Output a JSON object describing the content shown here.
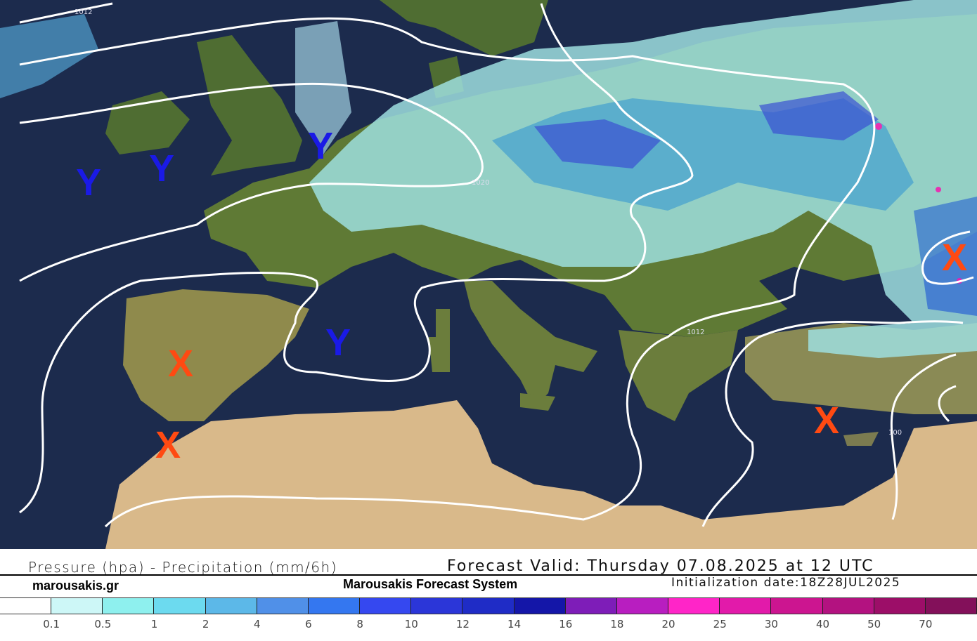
{
  "header": {
    "title_left": "Pressure (hpa) - Precipitation (mm/6h)",
    "forecast_valid": "Forecast Valid:  Thursday 07.08.2025 at 12 UTC",
    "site": "marousakis.gr",
    "system": "Marousakis Forecast System",
    "initialization": "Initialization date:18Z28JUL2025"
  },
  "legend": {
    "colors": [
      "#ffffff",
      "#cdf7f7",
      "#8ef0ee",
      "#6cdaef",
      "#5cb8e8",
      "#5090e8",
      "#3477f0",
      "#3548f0",
      "#2b36d8",
      "#1f2cc6",
      "#1416a8",
      "#7e1db8",
      "#b81ec0",
      "#ff25c8",
      "#e21aaa",
      "#cc1590",
      "#b31280",
      "#9c0e68",
      "#83105a"
    ],
    "labels": [
      "0.1",
      "0.5",
      "1",
      "2",
      "4",
      "6",
      "8",
      "10",
      "12",
      "14",
      "16",
      "18",
      "20",
      "25",
      "30",
      "40",
      "50",
      "70"
    ]
  },
  "map": {
    "isobar_labels": [
      "1012",
      "1020",
      "1012",
      "100"
    ],
    "high_marker": "Y",
    "low_marker": "X",
    "high_color": "#1a1ae6",
    "low_color": "#ff4a12",
    "sea_color": "#1c2b4d",
    "isobar_color": "#ffffff"
  }
}
